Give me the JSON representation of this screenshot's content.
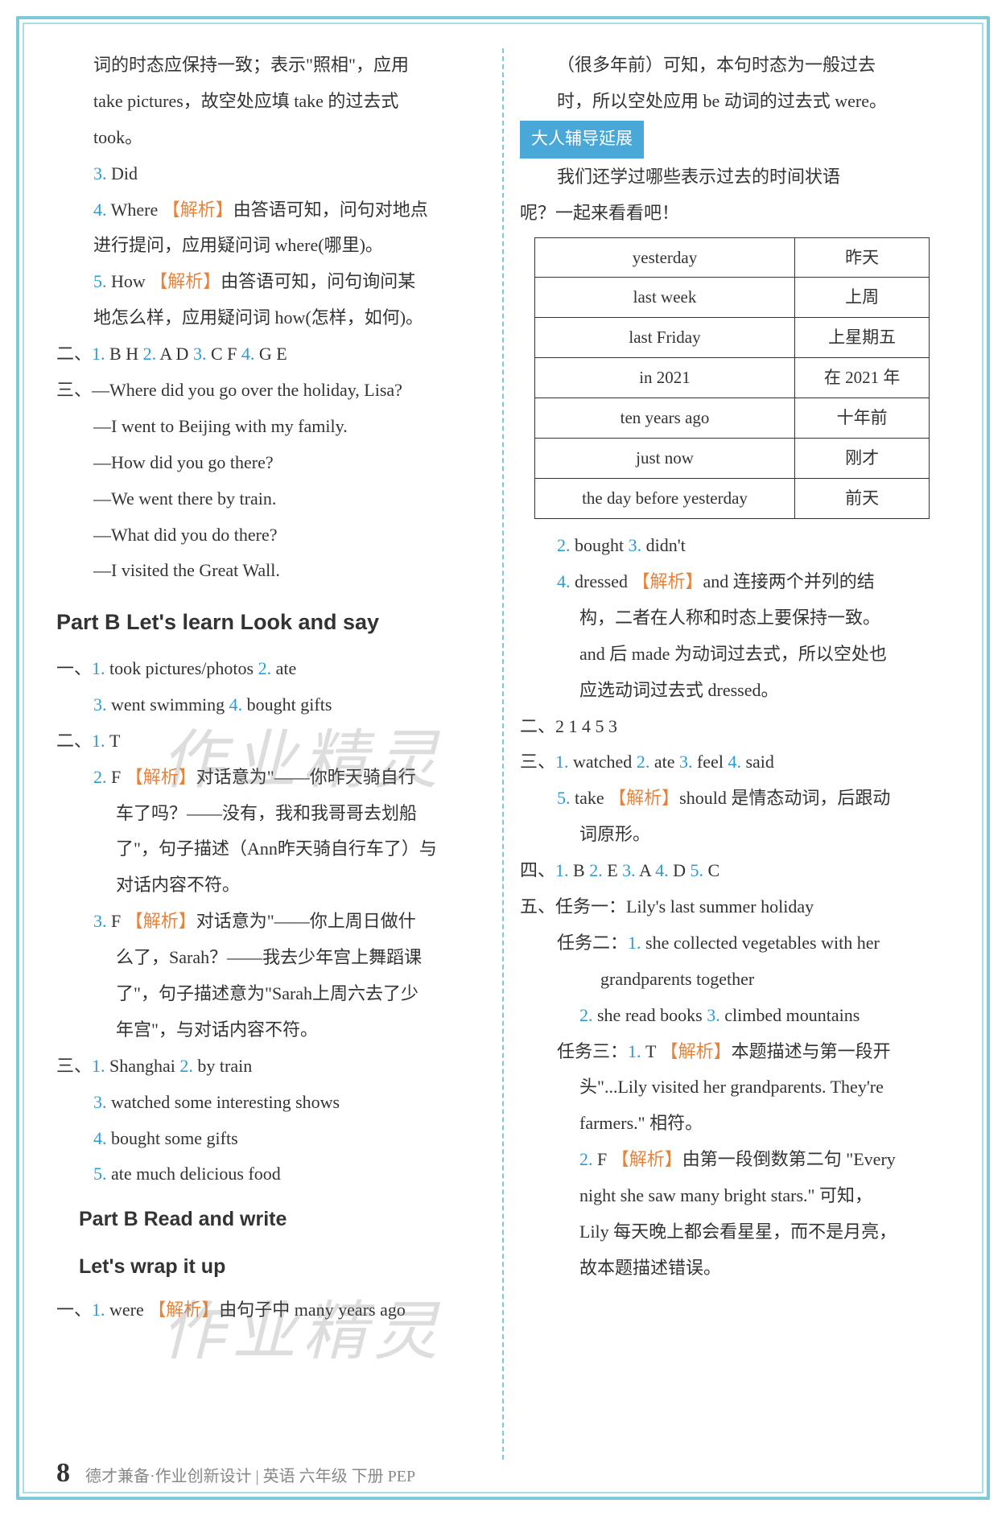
{
  "left": {
    "p1": "词的时态应保持一致；表示\"照相\"，应用",
    "p2": "take pictures，故空处应填 take 的过去式",
    "p3": "took。",
    "a3_num": "3.",
    "a3": "Did",
    "a4_num": "4.",
    "a4": "Where",
    "a4_tag": "【解析】",
    "a4_exp": "由答语可知，问句对地点",
    "a4_exp2": "进行提问，应用疑问词 where(哪里)。",
    "a5_num": "5.",
    "a5": "How",
    "a5_tag": "【解析】",
    "a5_exp": "由答语可知，问句询问某",
    "a5_exp2": "地怎么样，应用疑问词 how(怎样，如何)。",
    "sec2": "二、",
    "s2_1n": "1.",
    "s2_1": "B H",
    "s2_2n": "2.",
    "s2_2": "A D",
    "s2_3n": "3.",
    "s2_3": "C F",
    "s2_4n": "4.",
    "s2_4": "G E",
    "sec3": "三、",
    "d1": "—Where did you go over the holiday, Lisa?",
    "d2": "—I went to Beijing with my family.",
    "d3": "—How did you go there?",
    "d4": "—We went there by train.",
    "d5": "—What did you do there?",
    "d6": "—I visited the Great Wall.",
    "partB1": "Part B   Let's learn   Look and say",
    "pb_s1": "一、",
    "pb1_1n": "1.",
    "pb1_1": "took pictures/photos",
    "pb1_2n": "2.",
    "pb1_2": "ate",
    "pb1_3n": "3.",
    "pb1_3": "went swimming",
    "pb1_4n": "4.",
    "pb1_4": "bought gifts",
    "pb_s2": "二、",
    "pb2_1n": "1.",
    "pb2_1": "T",
    "pb2_2n": "2.",
    "pb2_2": "F",
    "pb2_2tag": "【解析】",
    "pb2_2exp": "对话意为\"——你昨天骑自行",
    "pb2_2exp2": "车了吗？——没有，我和我哥哥去划船",
    "pb2_2exp3": "了\"，句子描述（Ann昨天骑自行车了）与",
    "pb2_2exp4": "对话内容不符。",
    "pb2_3n": "3.",
    "pb2_3": "F",
    "pb2_3tag": "【解析】",
    "pb2_3exp": "对话意为\"——你上周日做什",
    "pb2_3exp2": "么了，Sarah？——我去少年宫上舞蹈课",
    "pb2_3exp3": "了\"，句子描述意为\"Sarah上周六去了少",
    "pb2_3exp4": "年宫\"，与对话内容不符。",
    "pb_s3": "三、",
    "pb3_1n": "1.",
    "pb3_1": "Shanghai",
    "pb3_2n": "2.",
    "pb3_2": "by train",
    "pb3_3n": "3.",
    "pb3_3": "watched some interesting shows",
    "pb3_4n": "4.",
    "pb3_4": "bought some gifts",
    "pb3_5n": "5.",
    "pb3_5": "ate much delicious food",
    "partB2": "Part B   Read and write",
    "partB2b": "Let's wrap it up",
    "pw_s1": "一、",
    "pw1_1n": "1.",
    "pw1_1": "were",
    "pw1_tag": "【解析】",
    "pw1_exp": "由句子中 many years ago"
  },
  "right": {
    "r1": "（很多年前）可知，本句时态为一般过去",
    "r2": "时，所以空处应用 be 动词的过去式 were。",
    "guide": "大人辅导延展",
    "g1": "我们还学过哪些表示过去的时间状语",
    "g2": "呢？一起来看看吧！",
    "table": {
      "rows": [
        [
          "yesterday",
          "昨天"
        ],
        [
          "last week",
          "上周"
        ],
        [
          "last Friday",
          "上星期五"
        ],
        [
          "in 2021",
          "在 2021 年"
        ],
        [
          "ten years ago",
          "十年前"
        ],
        [
          "just now",
          "刚才"
        ],
        [
          "the day before yesterday",
          "前天"
        ]
      ]
    },
    "r2_2n": "2.",
    "r2_2": "bought",
    "r2_3n": "3.",
    "r2_3": "didn't",
    "r2_4n": "4.",
    "r2_4": "dressed",
    "r2_4tag": "【解析】",
    "r2_4exp": "and 连接两个并列的结",
    "r2_4exp2": "构，二者在人称和时态上要保持一致。",
    "r2_4exp3": "and 后 made 为动词过去式，所以空处也",
    "r2_4exp4": "应选动词过去式 dressed。",
    "rs2": "二、",
    "rs2_a": "2   1   4   5   3",
    "rs3": "三、",
    "rs3_1n": "1.",
    "rs3_1": "watched",
    "rs3_2n": "2.",
    "rs3_2": "ate",
    "rs3_3n": "3.",
    "rs3_3": "feel",
    "rs3_4n": "4.",
    "rs3_4": "said",
    "rs3_5n": "5.",
    "rs3_5": "take",
    "rs3_5tag": "【解析】",
    "rs3_5exp": "should 是情态动词，后跟动",
    "rs3_5exp2": "词原形。",
    "rs4": "四、",
    "rs4_1n": "1.",
    "rs4_1": "B",
    "rs4_2n": "2.",
    "rs4_2": "E",
    "rs4_3n": "3.",
    "rs4_3": "A",
    "rs4_4n": "4.",
    "rs4_4": "D",
    "rs4_5n": "5.",
    "rs4_5": "C",
    "rs5": "五、",
    "task1": "任务一：Lily's last summer holiday",
    "task2": "任务二：",
    "t2_1n": "1.",
    "t2_1": "she collected vegetables with her",
    "t2_1b": "grandparents together",
    "t2_2n": "2.",
    "t2_2": "she read books",
    "t2_3n": "3.",
    "t2_3": "climbed mountains",
    "task3": "任务三：",
    "t3_1n": "1.",
    "t3_1": "T",
    "t3_1tag": "【解析】",
    "t3_1exp": "本题描述与第一段开",
    "t3_1exp2": "头\"...Lily visited her grandparents. They're",
    "t3_1exp3": "farmers.\" 相符。",
    "t3_2n": "2.",
    "t3_2": "F",
    "t3_2tag": "【解析】",
    "t3_2exp": "由第一段倒数第二句 \"Every",
    "t3_2exp2": "night she saw many bright stars.\" 可知，",
    "t3_2exp3": "Lily 每天晚上都会看星星，而不是月亮，",
    "t3_2exp4": "故本题描述错误。"
  },
  "footer": {
    "page": "8",
    "text": "德才兼备·作业创新设计 | 英语 六年级 下册 PEP"
  },
  "watermark": "作业精灵"
}
